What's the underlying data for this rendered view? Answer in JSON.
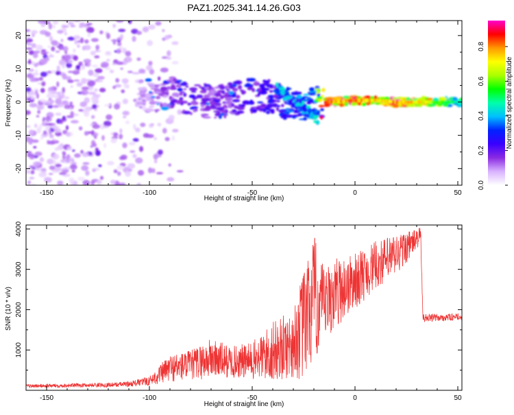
{
  "title": "PAZ1.2025.341.14.26.G03",
  "chart_data": [
    {
      "type": "heatmap",
      "name": "spectrogram",
      "xlabel": "Height of straight line (km)",
      "ylabel": "Frequency (Hz)",
      "xlim": [
        -160,
        52
      ],
      "ylim": [
        -25,
        24.5
      ],
      "xticks": [
        -150,
        -100,
        -50,
        0,
        50
      ],
      "yticks": [
        -20,
        -10,
        0,
        10,
        20
      ],
      "colorbar": {
        "label": "Normalized spectral amplitude",
        "range": [
          0,
          0.95
        ],
        "ticks": [
          0.0,
          0.2,
          0.4,
          0.6,
          0.8
        ],
        "colors": [
          "#ffffff",
          "#d9b3ff",
          "#8a2be2",
          "#3a00ff",
          "#0022ff",
          "#00bfff",
          "#00ffaa",
          "#00ff00",
          "#aaff00",
          "#ffff00",
          "#ff9900",
          "#ff0000",
          "#ff00cc"
        ]
      },
      "ridge": {
        "description_points": [
          {
            "x": -100,
            "y": 2,
            "v": 0.1
          },
          {
            "x": -90,
            "y": 2.5,
            "v": 0.18
          },
          {
            "x": -80,
            "y": 1.5,
            "v": 0.2
          },
          {
            "x": -70,
            "y": 0,
            "v": 0.18
          },
          {
            "x": -60,
            "y": 0.5,
            "v": 0.2
          },
          {
            "x": -50,
            "y": 2,
            "v": 0.22
          },
          {
            "x": -40,
            "y": 1.5,
            "v": 0.25
          },
          {
            "x": -30,
            "y": -1,
            "v": 0.35
          },
          {
            "x": -20,
            "y": 0.5,
            "v": 0.4
          },
          {
            "x": -15,
            "y": 0,
            "v": 0.9
          },
          {
            "x": 0,
            "y": 0.5,
            "v": 0.85
          },
          {
            "x": 10,
            "y": 0.5,
            "v": 0.8
          },
          {
            "x": 20,
            "y": 0,
            "v": 0.85
          },
          {
            "x": 30,
            "y": 0,
            "v": 0.8
          },
          {
            "x": 50,
            "y": 0,
            "v": 0.5
          }
        ]
      }
    },
    {
      "type": "line",
      "name": "snr",
      "xlabel": "Height of straight line (km)",
      "ylabel": "SNR (10 * v/v)",
      "xlim": [
        -160,
        52
      ],
      "ylim": [
        0,
        4100
      ],
      "xticks": [
        -150,
        -100,
        -50,
        0,
        50
      ],
      "yticks": [
        1000,
        2000,
        3000,
        4000
      ],
      "color": "#ee3333",
      "envelope": {
        "x": [
          -160,
          -140,
          -120,
          -110,
          -100,
          -90,
          -80,
          -70,
          -60,
          -50,
          -40,
          -30,
          -25,
          -20,
          -15,
          -10,
          0,
          10,
          20,
          30,
          32,
          33,
          40,
          52
        ],
        "lo": [
          60,
          70,
          80,
          90,
          120,
          200,
          250,
          280,
          300,
          250,
          200,
          300,
          200,
          600,
          1100,
          1500,
          2000,
          2500,
          2800,
          3500,
          3600,
          1700,
          1700,
          1750
        ],
        "hi": [
          150,
          170,
          190,
          220,
          350,
          900,
          1000,
          1300,
          1100,
          1200,
          1700,
          2000,
          3000,
          3900,
          3000,
          3300,
          3400,
          3700,
          3900,
          4000,
          4050,
          1900,
          1900,
          1900
        ]
      }
    }
  ]
}
